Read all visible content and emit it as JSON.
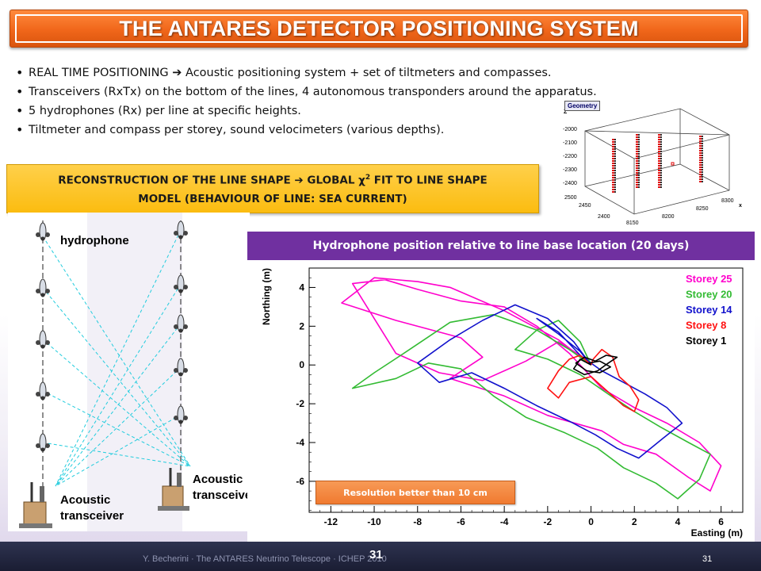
{
  "title": "THE ANTARES DETECTOR POSITIONING SYSTEM",
  "bullets": [
    {
      "before": "REAL TIME POSITIONING ",
      "arrow": "➔",
      "after": " Acoustic positioning system + set of tiltmeters and compasses."
    },
    {
      "text": "Transceivers (RxTx) on the bottom of the lines, 4 autonomous transponders around the apparatus."
    },
    {
      "text": "5 hydrophones (Rx) per line at specific heights."
    },
    {
      "text": "Tiltmeter and compass per storey, sound velocimeters (various depths)."
    }
  ],
  "reconstruction": {
    "line1_before": "RECONSTRUCTION OF THE LINE SHAPE ",
    "arrow": "➔",
    "line1_mid": " GLOBAL ",
    "chi": "χ",
    "sup": "2",
    "line1_after": " FIT TO LINE SHAPE",
    "line2": "MODEL (BEHAVIOUR OF LINE: SEA CURRENT)"
  },
  "geometry": {
    "tag": "Geometry",
    "z_label": "Z",
    "x_label": "x",
    "z_ticks": [
      "-2000",
      "-2100",
      "-2200",
      "-2300",
      "-2400",
      "2500"
    ],
    "y_ticks": [
      "2450",
      "2400"
    ],
    "x_ticks": [
      "8150",
      "8200",
      "8250",
      "8300"
    ]
  },
  "diagram": {
    "hydrophone_label": "hydrophone",
    "transceiver_left": [
      "Acoustic",
      "transceiver"
    ],
    "transceiver_right": [
      "Acoustic",
      "transceiver"
    ]
  },
  "plot": {
    "header": "Hydrophone position relative to line base location (20 days)",
    "resolution": "Resolution better than 10 cm"
  },
  "chart_data": {
    "type": "line",
    "xlabel": "Easting (m)",
    "ylabel": "Northing (m)",
    "xlim": [
      -13,
      7
    ],
    "ylim": [
      -7.6,
      5
    ],
    "x_ticks": [
      -12,
      -10,
      -8,
      -6,
      -4,
      -2,
      0,
      2,
      4,
      6
    ],
    "y_ticks": [
      4,
      2,
      0,
      -2,
      -4,
      -6
    ],
    "legend_position": "top-right",
    "series": [
      {
        "name": "Storey 25",
        "color": "#ff00cc",
        "x": [
          0,
          -1.5,
          -4,
          -6.5,
          -8,
          -10,
          -11.5,
          -9,
          -6,
          -5,
          -6.5,
          -4,
          -2,
          0.5,
          1.5,
          3,
          4.5,
          5.5,
          6,
          5,
          3.5,
          2,
          0.5,
          -1,
          -2.5,
          -4,
          -6,
          -8,
          -9.5,
          -11,
          -9,
          -7,
          -5,
          -3,
          -1.5,
          -0.5,
          0
        ],
        "y": [
          0,
          1.3,
          2.8,
          4,
          4.3,
          4.5,
          3.2,
          2.3,
          1.4,
          0.4,
          -0.7,
          -1.6,
          -2.6,
          -3.4,
          -4.1,
          -4.6,
          -5.8,
          -6.5,
          -5.2,
          -4,
          -3,
          -2.2,
          -1.2,
          0.6,
          2,
          3,
          3.3,
          3.9,
          4.4,
          4.2,
          0.6,
          -0.4,
          -0.8,
          0.2,
          1.2,
          0.5,
          0
        ]
      },
      {
        "name": "Storey 20",
        "color": "#33bb33",
        "x": [
          0,
          -1,
          -2.5,
          -4.5,
          -6.5,
          -8.5,
          -10,
          -11,
          -9,
          -7.5,
          -6,
          -4.5,
          -3,
          -1.2,
          0.3,
          1.5,
          3,
          4,
          5,
          5.5,
          4.5,
          3.2,
          2,
          0.8,
          -0.5,
          -2,
          -3.5,
          -2.5,
          -1.5,
          -0.5,
          0
        ],
        "y": [
          0,
          0.8,
          1.8,
          2.6,
          2.2,
          0.7,
          -0.4,
          -1.2,
          -0.7,
          0.1,
          -0.2,
          -1.6,
          -2.7,
          -3.5,
          -4.3,
          -5.3,
          -6.1,
          -6.9,
          -5.9,
          -4.6,
          -4,
          -3.2,
          -2.4,
          -1.5,
          -0.5,
          0.3,
          0.8,
          1.8,
          2.3,
          1.2,
          0
        ]
      },
      {
        "name": "Storey 14",
        "color": "#1111cc",
        "x": [
          0,
          -0.8,
          -2,
          -3.5,
          -5,
          -6.5,
          -8,
          -7,
          -5.5,
          -4,
          -2.5,
          -1,
          0.2,
          1.2,
          2.2,
          3.3,
          4.2,
          3.5,
          2.5,
          1.5,
          0.5,
          -0.5,
          -1.5,
          -2.5,
          -1.5,
          -0.5,
          0
        ],
        "y": [
          0,
          1.2,
          2.4,
          3.1,
          2.3,
          1.3,
          0.1,
          -0.9,
          -0.4,
          -1.2,
          -2.1,
          -2.9,
          -3.6,
          -4.3,
          -4.8,
          -3.8,
          -3,
          -2.2,
          -1.5,
          -0.9,
          -0.3,
          0.5,
          1.7,
          2.4,
          1.6,
          0.7,
          0
        ]
      },
      {
        "name": "Storey 8",
        "color": "#ff1111",
        "x": [
          0,
          -0.5,
          -1,
          -1.5,
          -2,
          -1.5,
          -1,
          0,
          0.5,
          1,
          1.5,
          2,
          2.2,
          1.8,
          1.3,
          1,
          0.5,
          0.1,
          0
        ],
        "y": [
          0,
          0.5,
          0.3,
          -0.3,
          -1.2,
          -1.7,
          -0.9,
          -0.6,
          -1.1,
          -1.6,
          -2.1,
          -2.4,
          -1.8,
          -1.1,
          -0.6,
          0.4,
          0.8,
          0.3,
          0
        ]
      },
      {
        "name": "Storey 1",
        "color": "#000000",
        "x": [
          0,
          -0.5,
          -0.8,
          -0.3,
          0.3,
          0.8,
          1.2,
          0.7,
          0.2,
          -0.3,
          -0.7,
          -0.2,
          0.4,
          0.9,
          0.4,
          -0.1,
          0
        ],
        "y": [
          0,
          0.3,
          -0.2,
          -0.5,
          -0.3,
          0.1,
          0.4,
          0.5,
          0.2,
          0.4,
          0.1,
          -0.3,
          -0.4,
          -0.1,
          0.2,
          0.1,
          0
        ]
      }
    ]
  },
  "footer": {
    "text": "Y. Becherini · The ANTARES Neutrino Telescope · ICHEP 2010",
    "center": "31",
    "page": "31"
  }
}
